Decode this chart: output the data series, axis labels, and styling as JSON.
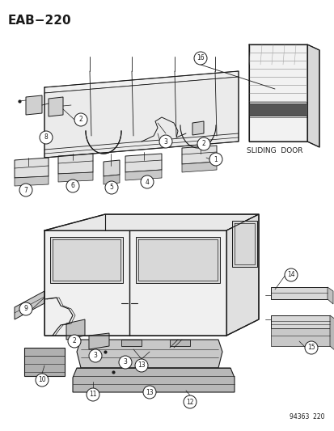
{
  "title": "EAB−220",
  "background_color": "#ffffff",
  "sliding_door_label": "SLIDING  DOOR",
  "catalog_number": "94363  220",
  "line_color": "#1a1a1a",
  "font_size_title": 11,
  "font_size_label": 6.5,
  "font_size_number": 5.5,
  "font_size_catalog": 5.5
}
